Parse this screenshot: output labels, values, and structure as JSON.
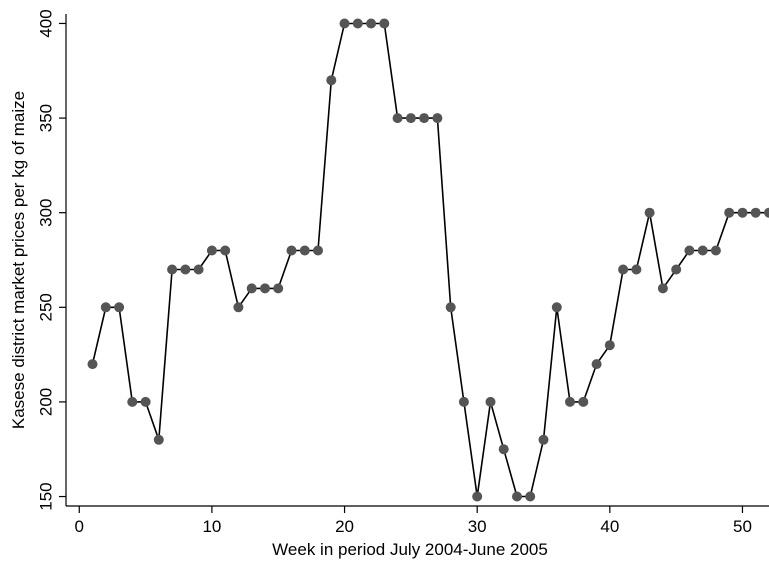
{
  "chart_data": {
    "type": "line",
    "title": "",
    "xlabel": "Week in period July 2004-June 2005",
    "ylabel": "Kasese district market prices per kg of maize",
    "xlim": [
      -1,
      52
    ],
    "ylim": [
      145,
      405
    ],
    "xticks": [
      0,
      10,
      20,
      30,
      40,
      50
    ],
    "yticks": [
      150,
      200,
      250,
      300,
      350,
      400
    ],
    "grid": false,
    "legend": "none",
    "colors": {
      "line": "#000000",
      "marker": "#555555"
    },
    "series": [
      {
        "x": [
          1,
          2,
          3,
          4,
          5,
          6,
          7,
          8,
          9,
          10,
          11,
          12,
          13,
          14,
          15,
          16,
          17,
          18,
          19,
          20,
          21,
          22,
          23,
          24,
          25,
          26,
          27,
          28,
          29,
          30,
          31,
          32,
          33,
          34,
          35,
          36,
          37,
          38,
          39,
          40,
          41,
          42,
          43,
          44,
          45,
          46,
          47,
          48,
          49,
          50,
          51,
          52
        ],
        "y": [
          220,
          250,
          250,
          200,
          200,
          180,
          270,
          270,
          270,
          280,
          280,
          250,
          260,
          260,
          260,
          280,
          280,
          280,
          370,
          400,
          400,
          400,
          400,
          350,
          350,
          350,
          350,
          250,
          200,
          150,
          200,
          175,
          150,
          150,
          180,
          250,
          200,
          200,
          220,
          230,
          270,
          270,
          300,
          260,
          270,
          280,
          280,
          280,
          300,
          300,
          300,
          300
        ]
      }
    ]
  }
}
